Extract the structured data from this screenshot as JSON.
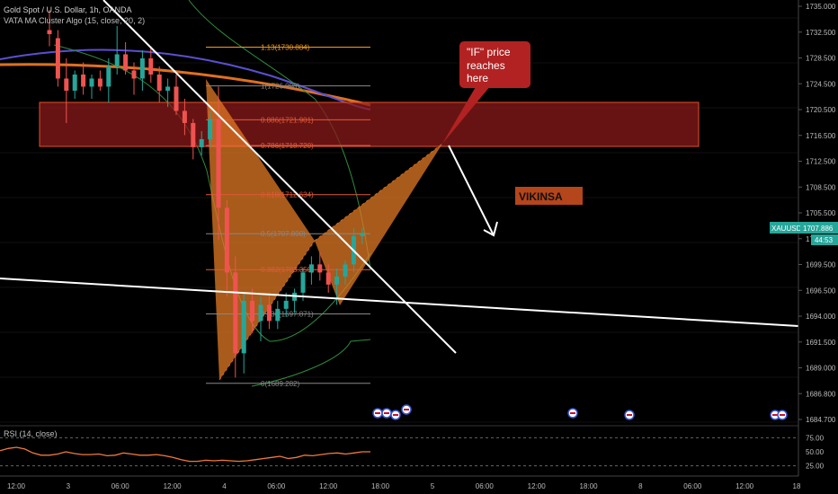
{
  "header": {
    "symbol_line": "Gold Spot / U.S. Dollar, 1h, OANDA",
    "indicator_line": "VATA MA Cluster Algo (15, close, 20, 2)"
  },
  "price_axis": {
    "ticks": [
      "1735.000",
      "1732.500",
      "1728.500",
      "1724.500",
      "1720.500",
      "1716.500",
      "1712.500",
      "1708.500",
      "1705.500",
      "1702.500",
      "1699.500",
      "1696.500",
      "1694.000",
      "1691.500",
      "1689.000",
      "1686.800",
      "1684.700"
    ],
    "last_price": "1707.886",
    "symbol_badge": "XAUUSD",
    "countdown": "44:53"
  },
  "time_axis": {
    "ticks": [
      "12:00",
      "3",
      "06:00",
      "12:00",
      "4",
      "06:00",
      "12:00",
      "18:00",
      "5",
      "06:00",
      "12:00",
      "18:00",
      "8",
      "06:00",
      "12:00",
      "18"
    ]
  },
  "fib_levels": [
    {
      "label": "1.13(1730.884)",
      "price": 1730.884,
      "color": "#f59a23"
    },
    {
      "label": "1(1726.098)",
      "price": 1726.098,
      "color": "#888888"
    },
    {
      "label": "0.886(1721.901)",
      "price": 1721.901,
      "color": "#e05a3a"
    },
    {
      "label": "0.786(1718.720)",
      "price": 1718.72,
      "color": "#e05a3a"
    },
    {
      "label": "0.618(1712.634)",
      "price": 1712.634,
      "color": "#e05a3a"
    },
    {
      "label": "0.5(1707.800)",
      "price": 1707.8,
      "color": "#888888"
    },
    {
      "label": "0.382(1703.350)",
      "price": 1703.35,
      "color": "#e05a3a"
    },
    {
      "label": "0.236(1697.871)",
      "price": 1697.871,
      "color": "#888888"
    },
    {
      "label": "0(1689.282)",
      "price": 1689.282,
      "color": "#888888"
    }
  ],
  "callout": {
    "lines": [
      "\"IF\" price",
      "reaches",
      "here"
    ],
    "color": "#b22222"
  },
  "watermark": {
    "text": "VIKINSA",
    "bg": "#b5451b"
  },
  "rsi": {
    "title": "RSI (14, close)",
    "ticks": [
      "75.00",
      "50.00",
      "25.00"
    ],
    "values": [
      52,
      56,
      58,
      55,
      48,
      44,
      44,
      46,
      50,
      47,
      45,
      45,
      46,
      43,
      44,
      48,
      46,
      44,
      44,
      45,
      43,
      40,
      36,
      33,
      33,
      35,
      34,
      35,
      34,
      33,
      34,
      36,
      38,
      40,
      42,
      38,
      40,
      44,
      43,
      45,
      47,
      48,
      46,
      48,
      50,
      50
    ],
    "color": "#f07a3a"
  },
  "colors": {
    "bull": "#26a69a",
    "bear": "#ef5350",
    "zone": "#8b1a1a",
    "pattern": "#e07a24",
    "trendline": "#ffffff",
    "ma_orange": "#e0701f",
    "ma_purple": "#5b4fd0",
    "ma_green": "#2e8b3e"
  },
  "chart_data": {
    "type": "candlestick",
    "title": "Gold Spot / U.S. Dollar, 1h, OANDA",
    "ylim": [
      1684.7,
      1736.5
    ],
    "candles": [
      {
        "o": 1733.0,
        "h": 1735.5,
        "l": 1731.0,
        "c": 1732.5
      },
      {
        "o": 1732.0,
        "h": 1733.0,
        "l": 1726.0,
        "c": 1727.0
      },
      {
        "o": 1727.0,
        "h": 1729.5,
        "l": 1721.5,
        "c": 1725.5
      },
      {
        "o": 1725.5,
        "h": 1728.0,
        "l": 1724.5,
        "c": 1727.5
      },
      {
        "o": 1727.5,
        "h": 1729.0,
        "l": 1725.0,
        "c": 1726.0
      },
      {
        "o": 1726.0,
        "h": 1727.5,
        "l": 1724.5,
        "c": 1727.0
      },
      {
        "o": 1727.0,
        "h": 1728.0,
        "l": 1725.5,
        "c": 1726.0
      },
      {
        "o": 1726.0,
        "h": 1729.5,
        "l": 1724.0,
        "c": 1728.5
      },
      {
        "o": 1728.5,
        "h": 1733.5,
        "l": 1727.5,
        "c": 1730.0
      },
      {
        "o": 1730.0,
        "h": 1731.5,
        "l": 1727.5,
        "c": 1728.0
      },
      {
        "o": 1728.0,
        "h": 1729.0,
        "l": 1725.0,
        "c": 1727.0
      },
      {
        "o": 1727.0,
        "h": 1730.5,
        "l": 1725.5,
        "c": 1729.5
      },
      {
        "o": 1729.5,
        "h": 1731.0,
        "l": 1726.5,
        "c": 1727.5
      },
      {
        "o": 1727.5,
        "h": 1728.5,
        "l": 1724.0,
        "c": 1725.5
      },
      {
        "o": 1725.5,
        "h": 1727.0,
        "l": 1723.5,
        "c": 1726.0
      },
      {
        "o": 1726.0,
        "h": 1727.5,
        "l": 1722.5,
        "c": 1723.0
      },
      {
        "o": 1723.0,
        "h": 1724.5,
        "l": 1720.0,
        "c": 1721.5
      },
      {
        "o": 1721.5,
        "h": 1722.0,
        "l": 1717.0,
        "c": 1718.5
      },
      {
        "o": 1718.5,
        "h": 1720.5,
        "l": 1717.5,
        "c": 1719.5
      },
      {
        "o": 1719.5,
        "h": 1723.0,
        "l": 1718.5,
        "c": 1722.0
      },
      {
        "o": 1722.0,
        "h": 1726.0,
        "l": 1707.0,
        "c": 1711.0
      },
      {
        "o": 1711.0,
        "h": 1712.0,
        "l": 1700.0,
        "c": 1703.0
      },
      {
        "o": 1703.0,
        "h": 1705.0,
        "l": 1690.0,
        "c": 1693.0
      },
      {
        "o": 1693.0,
        "h": 1700.5,
        "l": 1690.5,
        "c": 1699.5
      },
      {
        "o": 1699.5,
        "h": 1701.0,
        "l": 1695.5,
        "c": 1697.0
      },
      {
        "o": 1697.0,
        "h": 1700.0,
        "l": 1694.5,
        "c": 1699.0
      },
      {
        "o": 1699.0,
        "h": 1700.5,
        "l": 1696.0,
        "c": 1697.0
      },
      {
        "o": 1697.0,
        "h": 1699.5,
        "l": 1696.0,
        "c": 1698.5
      },
      {
        "o": 1698.5,
        "h": 1700.5,
        "l": 1697.5,
        "c": 1699.5
      },
      {
        "o": 1699.5,
        "h": 1701.0,
        "l": 1698.0,
        "c": 1700.5
      },
      {
        "o": 1700.5,
        "h": 1703.5,
        "l": 1699.5,
        "c": 1703.0
      },
      {
        "o": 1703.0,
        "h": 1705.0,
        "l": 1701.5,
        "c": 1704.0
      },
      {
        "o": 1704.0,
        "h": 1705.5,
        "l": 1702.0,
        "c": 1703.0
      },
      {
        "o": 1703.0,
        "h": 1704.0,
        "l": 1700.5,
        "c": 1701.5
      },
      {
        "o": 1701.5,
        "h": 1703.5,
        "l": 1699.0,
        "c": 1702.5
      },
      {
        "o": 1702.5,
        "h": 1704.5,
        "l": 1701.5,
        "c": 1704.0
      },
      {
        "o": 1704.0,
        "h": 1708.5,
        "l": 1703.0,
        "c": 1707.5
      },
      {
        "o": 1707.5,
        "h": 1708.5,
        "l": 1706.5,
        "c": 1707.9
      }
    ]
  }
}
